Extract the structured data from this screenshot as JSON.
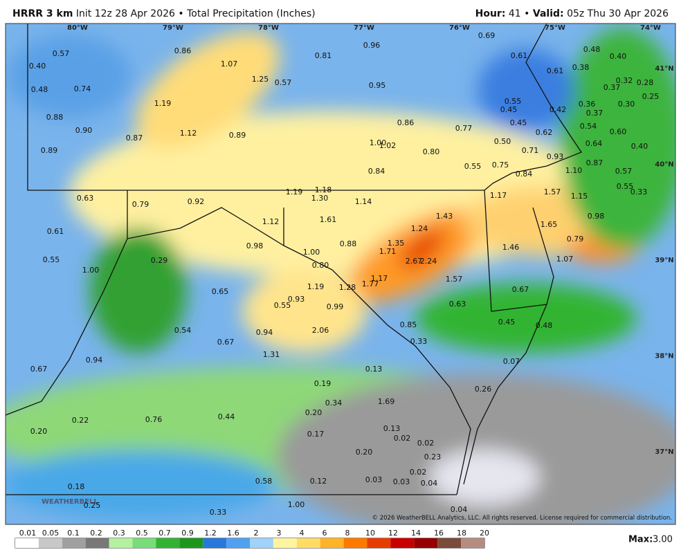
{
  "header": {
    "model": "HRRR 3 km",
    "init": "Init 12z 28 Apr 2026",
    "sep": "•",
    "product": "Total Precipitation (Inches)",
    "hour_label": "Hour:",
    "hour": "41",
    "valid_label": "Valid:",
    "valid": "05z Thu 30 Apr 2026"
  },
  "map": {
    "longitudes": [
      "80°W",
      "79°W",
      "78°W",
      "77°W",
      "76°W",
      "75°W",
      "74°W"
    ],
    "latitudes": [
      "41°N",
      "40°N",
      "39°N",
      "38°N",
      "37°N"
    ],
    "point_values": [
      "0.57",
      "0.40",
      "0.48",
      "0.74",
      "0.88",
      "0.90",
      "0.89",
      "0.87",
      "1.12",
      "0.89",
      "1.19",
      "1.07",
      "0.86",
      "1.25",
      "0.57",
      "0.81",
      "0.96",
      "0.95",
      "0.86",
      "1.00",
      "1.02",
      "0.84",
      "0.80",
      "0.55",
      "0.77",
      "0.69",
      "0.61",
      "0.61",
      "0.48",
      "0.38",
      "0.40",
      "0.32",
      "0.28",
      "0.37",
      "0.36",
      "0.37",
      "0.30",
      "0.25",
      "0.55",
      "0.45",
      "0.45",
      "0.42",
      "0.54",
      "0.60",
      "0.62",
      "0.50",
      "0.64",
      "0.71",
      "0.93",
      "0.40",
      "0.75",
      "0.84",
      "1.10",
      "0.87",
      "0.57",
      "0.55",
      "0.33",
      "1.57",
      "1.15",
      "1.17",
      "0.98",
      "1.65",
      "0.79",
      "1.46",
      "1.07",
      "0.67",
      "0.45",
      "0.48",
      "0.07",
      "0.26",
      "1.19",
      "1.18",
      "1.30",
      "1.14",
      "1.61",
      "1.12",
      "0.98",
      "0.88",
      "1.35",
      "1.71",
      "1.24",
      "1.43",
      "2.67",
      "2.24",
      "1.00",
      "0.80",
      "1.77",
      "1.17",
      "1.57",
      "0.63",
      "1.19",
      "1.28",
      "0.99",
      "0.93",
      "0.55",
      "0.85",
      "0.33",
      "2.06",
      "0.94",
      "1.31",
      "0.67",
      "0.54",
      "0.65",
      "0.29",
      "0.92",
      "0.79",
      "0.63",
      "0.61",
      "0.55",
      "1.00",
      "0.94",
      "0.67",
      "0.13",
      "0.19",
      "0.34",
      "1.69",
      "0.20",
      "0.17",
      "0.13",
      "0.02",
      "0.02",
      "0.23",
      "0.20",
      "0.02",
      "0.03",
      "0.03",
      "0.04",
      "0.12",
      "0.04",
      "0.58",
      "1.00",
      "0.33",
      "0.44",
      "0.76",
      "0.22",
      "0.20",
      "0.18",
      "0.25"
    ],
    "copyright": "© 2026 WeatherBELL Analytics, LLC. All rights reserved. License required for commercial distribution.",
    "logo": "WEATHERBELL"
  },
  "legend": {
    "labels": [
      "0.01",
      "0.05",
      "0.1",
      "0.2",
      "0.3",
      "0.5",
      "0.7",
      "0.9",
      "1.2",
      "1.6",
      "2",
      "3",
      "4",
      "6",
      "8",
      "10",
      "12",
      "14",
      "16",
      "18",
      "20"
    ],
    "colors": [
      "#ffffff",
      "#c8c8c8",
      "#a0a0a0",
      "#787878",
      "#b4f0a0",
      "#78dc78",
      "#32b432",
      "#1e961e",
      "#2878dc",
      "#50a0f0",
      "#a0d2fa",
      "#fff5a0",
      "#ffdc64",
      "#ffb428",
      "#ff7800",
      "#e63c00",
      "#c80000",
      "#960000",
      "#7a4a3a",
      "#b48c82"
    ]
  },
  "max": {
    "label": "Max:",
    "value": "3.00"
  }
}
